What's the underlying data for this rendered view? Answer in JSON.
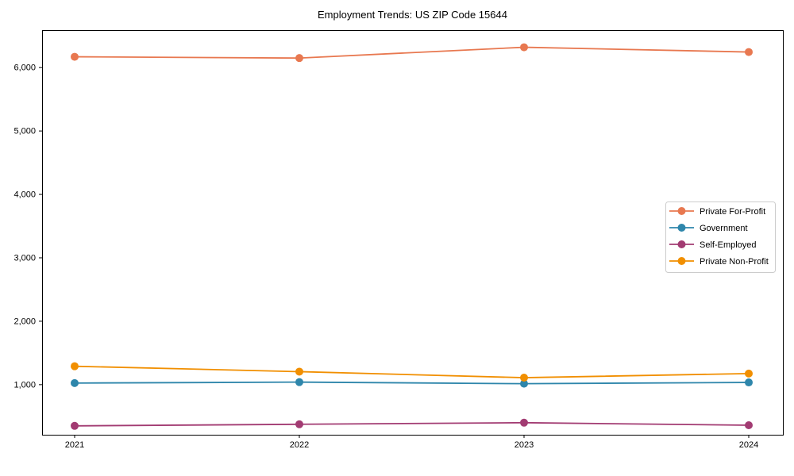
{
  "chart_data": {
    "type": "line",
    "title": "Employment Trends: US ZIP Code 15644",
    "xlabel": "",
    "ylabel": "",
    "categories": [
      "2021",
      "2022",
      "2023",
      "2024"
    ],
    "series": [
      {
        "name": "Private For-Profit",
        "color": "#E87850",
        "values": [
          6170,
          6150,
          6320,
          6245
        ]
      },
      {
        "name": "Government",
        "color": "#2E86AB",
        "values": [
          1025,
          1040,
          1015,
          1035
        ]
      },
      {
        "name": "Self-Employed",
        "color": "#A23B72",
        "values": [
          350,
          375,
          400,
          360
        ]
      },
      {
        "name": "Private Non-Profit",
        "color": "#F18F01",
        "values": [
          1290,
          1205,
          1110,
          1175
        ]
      }
    ],
    "ylim": [
      210,
      6590
    ],
    "ytick_values": [
      1000,
      2000,
      3000,
      4000,
      5000,
      6000
    ],
    "ytick_labels": [
      "1,000",
      "2,000",
      "3,000",
      "4,000",
      "5,000",
      "6,000"
    ],
    "grid": false,
    "legend_position": "center-right",
    "marker": "circle"
  },
  "colors": {
    "axis": "#000000",
    "tick_label": "#000000",
    "background": "#ffffff",
    "legend_border": "#cccccc",
    "legend_background": "#ffffff"
  }
}
